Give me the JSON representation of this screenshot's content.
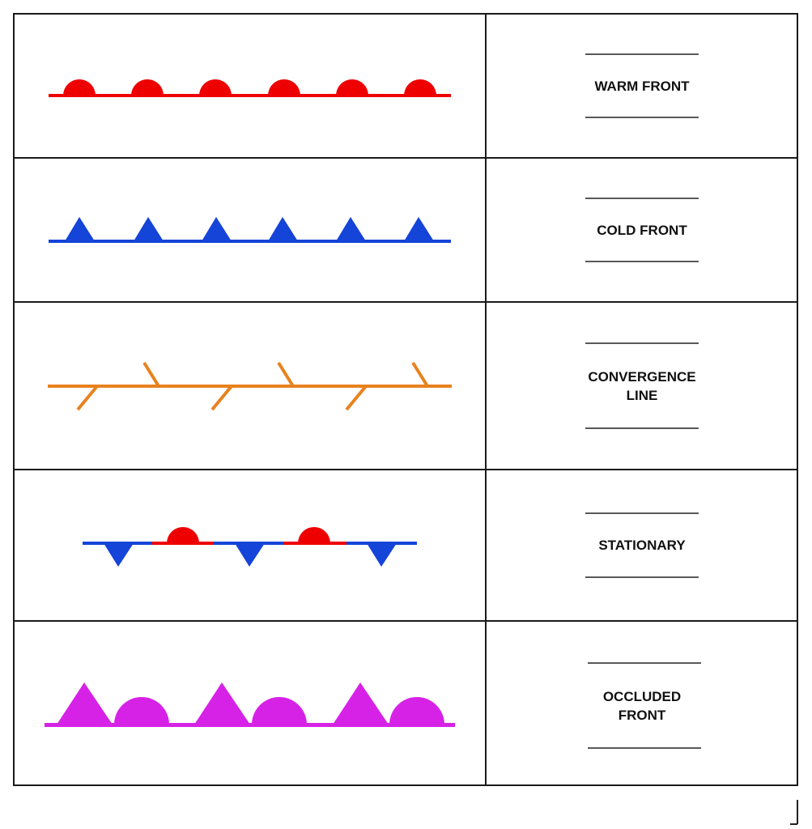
{
  "colors": {
    "warm": "#ee0000",
    "cold": "#1444d8",
    "convergence": "#e8821e",
    "occluded": "#d622e6",
    "border": "#1a1a1a",
    "rule": "#222222"
  },
  "rows": [
    {
      "id": "warm-front",
      "label": "WARM FRONT",
      "symbol": "semicircles",
      "color": "warm"
    },
    {
      "id": "cold-front",
      "label": "COLD FRONT",
      "symbol": "triangles",
      "color": "cold"
    },
    {
      "id": "convergence-line",
      "label": "CONVERGENCE\nLINE",
      "symbol": "barbs",
      "color": "convergence"
    },
    {
      "id": "stationary",
      "label": "STATIONARY",
      "symbol": "alternating",
      "color": "cold"
    },
    {
      "id": "occluded-front",
      "label": "OCCLUDED\nFRONT",
      "symbol": "mixed",
      "color": "occluded"
    }
  ]
}
